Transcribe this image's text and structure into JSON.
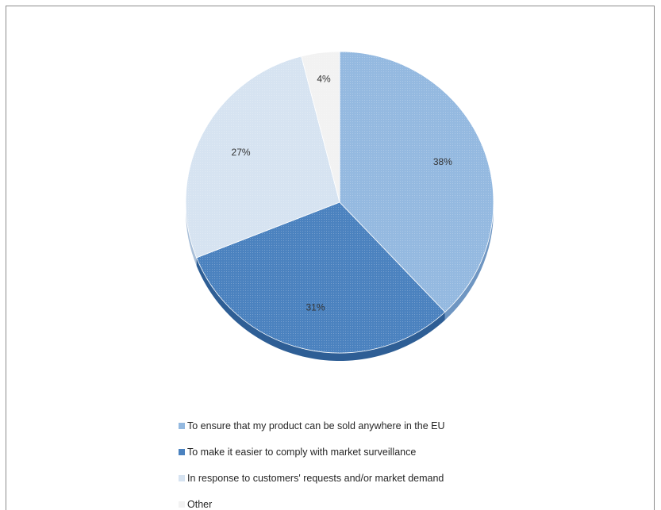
{
  "chart_data": {
    "type": "pie",
    "title": "",
    "slices": [
      {
        "label": "To ensure that my product can be sold anywhere in the EU",
        "value": 38,
        "data_label": "38%",
        "color": "#94b9e0",
        "side_color": "#6f96c2"
      },
      {
        "label": "To make it easier to comply with market surveillance",
        "value": 31,
        "data_label": "31%",
        "color": "#4b82bf",
        "side_color": "#2e5e95"
      },
      {
        "label": "In response to customers' requests and/or market demand",
        "value": 27,
        "data_label": "27%",
        "color": "#d6e3f1",
        "side_color": "#a9bfd8"
      },
      {
        "label": "Other",
        "value": 4,
        "data_label": "4%",
        "color": "#f2f2f2",
        "side_color": "#c9c9c9"
      }
    ],
    "start_angle_deg": -90,
    "direction": "clockwise",
    "style": "3d",
    "legend_position": "bottom"
  }
}
